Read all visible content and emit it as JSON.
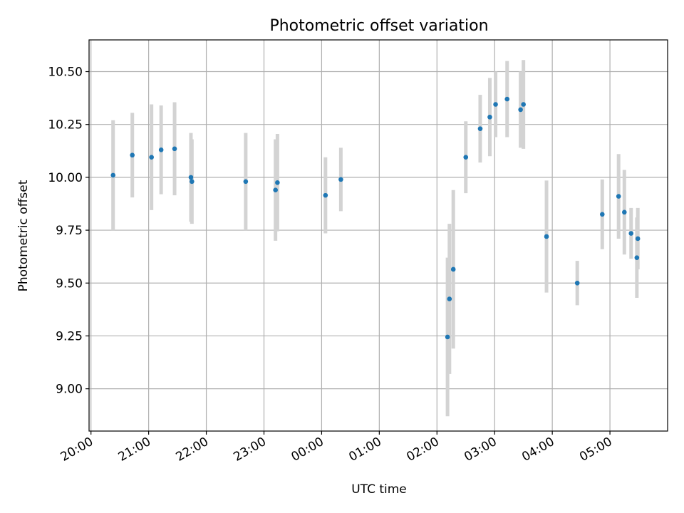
{
  "chart_data": {
    "type": "scatter",
    "title": "Photometric offset variation",
    "xlabel": "UTC time",
    "ylabel": "Photometric offset",
    "x_unit": "UTC",
    "xlim": [
      "19:58",
      "06:00"
    ],
    "ylim": [
      8.8,
      10.65
    ],
    "x_ticks": [
      "20:00",
      "21:00",
      "22:00",
      "23:00",
      "00:00",
      "01:00",
      "02:00",
      "03:00",
      "04:00",
      "05:00"
    ],
    "y_ticks": [
      9.0,
      9.25,
      9.5,
      9.75,
      10.0,
      10.25,
      10.5
    ],
    "y_tick_labels": [
      "9.00",
      "9.25",
      "9.50",
      "9.75",
      "10.00",
      "10.25",
      "10.50"
    ],
    "grid": true,
    "point_color": "#1f77b4",
    "errorbar_color": "#d3d3d3",
    "points": [
      {
        "x": "20:23",
        "y": 10.01,
        "err": 0.26
      },
      {
        "x": "20:43",
        "y": 10.105,
        "err": 0.2
      },
      {
        "x": "21:03",
        "y": 10.095,
        "err": 0.25
      },
      {
        "x": "21:13",
        "y": 10.13,
        "err": 0.21
      },
      {
        "x": "21:27",
        "y": 10.135,
        "err": 0.22
      },
      {
        "x": "21:44",
        "y": 10.0,
        "err": 0.21
      },
      {
        "x": "21:45",
        "y": 9.98,
        "err": 0.2
      },
      {
        "x": "22:41",
        "y": 9.98,
        "err": 0.23
      },
      {
        "x": "23:12",
        "y": 9.94,
        "err": 0.24
      },
      {
        "x": "23:14",
        "y": 9.975,
        "err": 0.23
      },
      {
        "x": "00:04",
        "y": 9.915,
        "err": 0.18
      },
      {
        "x": "00:20",
        "y": 9.99,
        "err": 0.15
      },
      {
        "x": "02:11",
        "y": 9.245,
        "err": 0.375
      },
      {
        "x": "02:13",
        "y": 9.425,
        "err": 0.355
      },
      {
        "x": "02:17",
        "y": 9.565,
        "err": 0.375
      },
      {
        "x": "02:30",
        "y": 10.095,
        "err": 0.17
      },
      {
        "x": "02:45",
        "y": 10.23,
        "err": 0.16
      },
      {
        "x": "02:55",
        "y": 10.285,
        "err": 0.185
      },
      {
        "x": "03:01",
        "y": 10.345,
        "err": 0.155
      },
      {
        "x": "03:13",
        "y": 10.37,
        "err": 0.18
      },
      {
        "x": "03:27",
        "y": 10.32,
        "err": 0.18
      },
      {
        "x": "03:30",
        "y": 10.345,
        "err": 0.21
      },
      {
        "x": "03:54",
        "y": 9.72,
        "err": 0.265
      },
      {
        "x": "04:26",
        "y": 9.5,
        "err": 0.105
      },
      {
        "x": "04:52",
        "y": 9.825,
        "err": 0.165
      },
      {
        "x": "05:09",
        "y": 9.91,
        "err": 0.2
      },
      {
        "x": "05:15",
        "y": 9.835,
        "err": 0.2
      },
      {
        "x": "05:22",
        "y": 9.735,
        "err": 0.12
      },
      {
        "x": "05:28",
        "y": 9.62,
        "err": 0.19
      },
      {
        "x": "05:29",
        "y": 9.71,
        "err": 0.145
      }
    ]
  }
}
